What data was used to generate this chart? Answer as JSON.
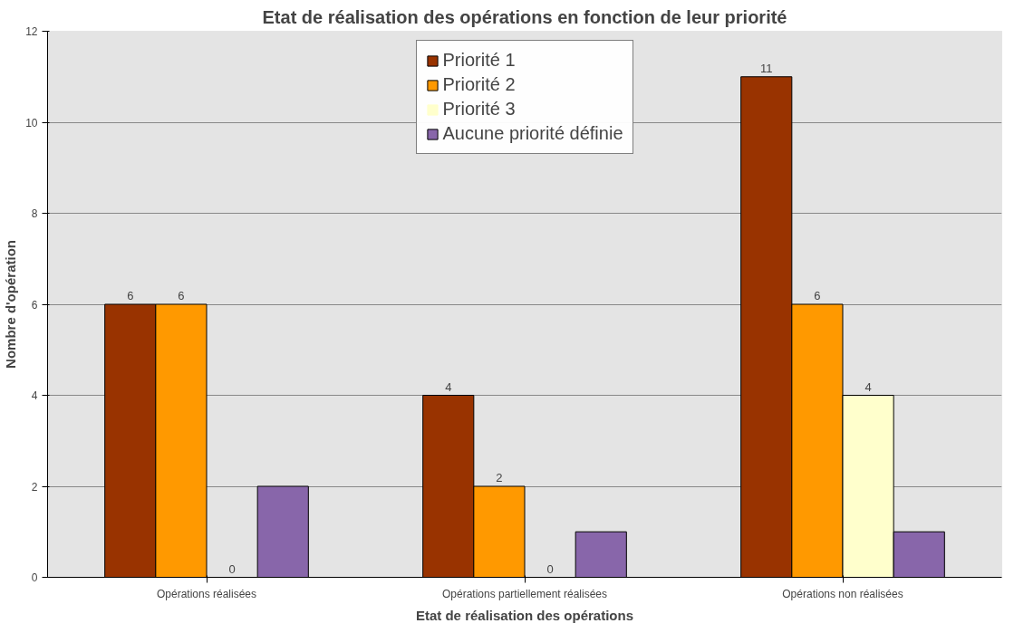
{
  "chart_data": {
    "type": "bar",
    "title": "Etat de réalisation des opérations en fonction de leur priorité",
    "xlabel": "Etat de réalisation des opérations",
    "ylabel": "Nombre d'opération",
    "categories": [
      "Opérations réalisées",
      "Opérations partiellement réalisées",
      "Opérations non réalisées"
    ],
    "series": [
      {
        "name": "Priorité 1",
        "color": "#993300",
        "values": [
          6,
          4,
          11
        ],
        "value_labels": [
          "6",
          "4",
          "11"
        ]
      },
      {
        "name": "Priorité 2",
        "color": "#ff9900",
        "values": [
          6,
          2,
          6
        ],
        "value_labels": [
          "6",
          "2",
          "6"
        ]
      },
      {
        "name": "Priorité 3",
        "color": "#ffffcc",
        "values": [
          0,
          0,
          4
        ],
        "value_labels": [
          "0",
          "0",
          "4"
        ]
      },
      {
        "name": "Aucune priorité définie",
        "color": "#8866aa",
        "values": [
          2,
          1,
          1
        ],
        "value_labels": [
          null,
          null,
          null
        ]
      }
    ],
    "ylim": [
      0,
      12
    ],
    "yticks": [
      0,
      2,
      4,
      6,
      8,
      10,
      12
    ],
    "grid": "y",
    "legend": "top"
  }
}
